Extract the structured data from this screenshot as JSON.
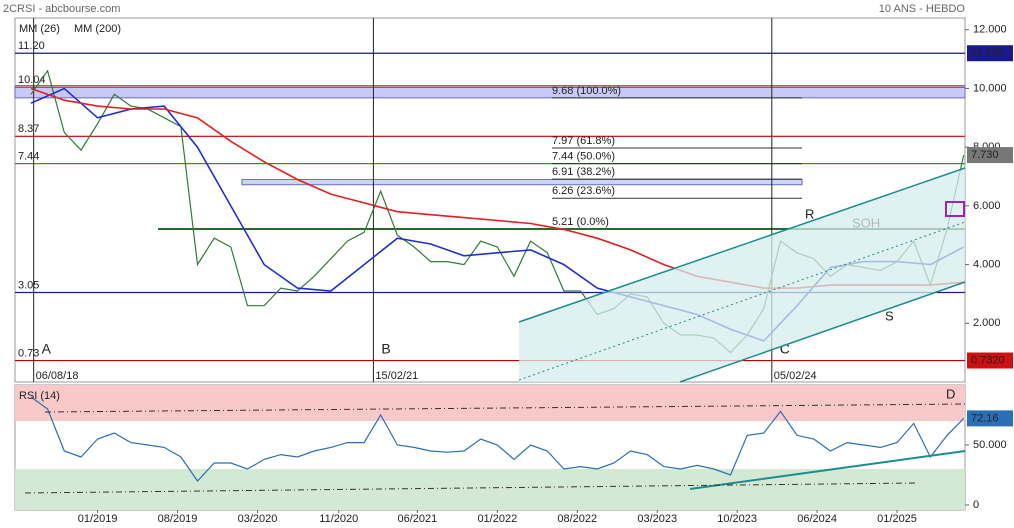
{
  "header": {
    "left": "2CRSI - abcbourse.com",
    "right": "10 ANS - HEBDO"
  },
  "chart_data": [
    {
      "type": "line",
      "xlim": [
        2018.38,
        2025.51
      ],
      "ylim": [
        0,
        12.4
      ],
      "yticks": [
        {
          "value": 12,
          "label": "12.000"
        },
        {
          "value": 10,
          "label": "10.000"
        },
        {
          "value": 8,
          "label": "8.000"
        },
        {
          "value": 6,
          "label": "6.000"
        },
        {
          "value": 4,
          "label": "4.000"
        },
        {
          "value": 2,
          "label": "2.000"
        }
      ],
      "series": [
        {
          "color": "#2f7d32",
          "x": [
            2018.5,
            2018.625,
            2018.75,
            2018.875,
            2019.0,
            2019.125,
            2019.25,
            2019.375,
            2019.5,
            2019.625,
            2019.75,
            2019.875,
            2020.0,
            2020.125,
            2020.25,
            2020.375,
            2020.5,
            2020.625,
            2020.75,
            2020.875,
            2021.0,
            2021.125,
            2021.25,
            2021.375,
            2021.5,
            2021.625,
            2021.75,
            2021.875,
            2022.0,
            2022.125,
            2022.25,
            2022.375,
            2022.5,
            2022.625,
            2022.75,
            2022.875,
            2023.0,
            2023.125,
            2023.25,
            2023.375,
            2023.5,
            2023.625,
            2023.75,
            2023.875,
            2024.0,
            2024.125,
            2024.25,
            2024.375,
            2024.5,
            2024.625,
            2024.75,
            2024.875,
            2025.0,
            2025.125,
            2025.25,
            2025.375,
            2025.5
          ],
          "values": [
            9.8,
            10.6,
            8.5,
            7.9,
            8.8,
            9.8,
            9.4,
            9.3,
            9.0,
            8.7,
            4.0,
            4.9,
            4.6,
            2.6,
            2.6,
            3.2,
            3.1,
            3.6,
            4.2,
            4.8,
            5.1,
            6.5,
            5.0,
            4.6,
            4.1,
            4.1,
            4.0,
            4.8,
            4.6,
            3.6,
            4.8,
            4.4,
            3.1,
            3.1,
            2.3,
            2.5,
            3.0,
            2.9,
            2.0,
            1.6,
            1.6,
            1.5,
            1.0,
            1.6,
            2.5,
            4.8,
            4.4,
            4.2,
            3.6,
            4.0,
            3.9,
            3.8,
            4.1,
            4.8,
            3.3,
            5.2,
            7.73
          ]
        },
        {
          "name": "MM (26)",
          "color": "#1f2fd0",
          "x": [
            2018.5,
            2018.75,
            2019.0,
            2019.25,
            2019.5,
            2019.75,
            2020.0,
            2020.25,
            2020.5,
            2020.75,
            2021.0,
            2021.25,
            2021.5,
            2021.75,
            2022.0,
            2022.25,
            2022.5,
            2022.75,
            2023.0,
            2023.25,
            2023.5,
            2023.75,
            2024.0,
            2024.25,
            2024.5,
            2024.75,
            2025.0,
            2025.25,
            2025.5
          ],
          "values": [
            9.5,
            10.0,
            9.0,
            9.3,
            9.4,
            8.0,
            6.0,
            4.0,
            3.2,
            3.1,
            4.0,
            4.9,
            4.7,
            4.3,
            4.4,
            4.5,
            4.0,
            3.2,
            2.9,
            2.6,
            2.3,
            1.8,
            1.4,
            2.6,
            3.9,
            4.1,
            4.1,
            4.0,
            4.6
          ]
        },
        {
          "name": "MM (200)",
          "color": "#e02020",
          "x": [
            2018.5,
            2018.75,
            2019.0,
            2019.25,
            2019.5,
            2019.75,
            2020.0,
            2020.25,
            2020.5,
            2020.75,
            2021.0,
            2021.25,
            2021.5,
            2021.75,
            2022.0,
            2022.25,
            2022.5,
            2022.75,
            2023.0,
            2023.25,
            2023.5,
            2023.75,
            2024.0,
            2024.25,
            2024.5,
            2024.75,
            2025.0,
            2025.25,
            2025.5
          ],
          "values": [
            10.0,
            9.6,
            9.4,
            9.3,
            9.3,
            9.0,
            8.2,
            7.5,
            6.9,
            6.4,
            6.1,
            5.8,
            5.7,
            5.6,
            5.5,
            5.4,
            5.2,
            4.9,
            4.5,
            4.0,
            3.6,
            3.4,
            3.2,
            3.2,
            3.3,
            3.3,
            3.3,
            3.3,
            3.4
          ]
        }
      ],
      "levels": [
        {
          "value": 11.2,
          "label": "11.20",
          "color": "#1a1a8c"
        },
        {
          "value": 10.04,
          "label": "10.04",
          "color": "#d03030"
        },
        {
          "value": 8.37,
          "label": "8.37",
          "color": "#c00000"
        },
        {
          "value": 7.44,
          "label": "7.44",
          "color": "#2a9a2a"
        },
        {
          "value": 3.05,
          "label": "3.05",
          "color": "#1a1a8c"
        },
        {
          "value": 0.73,
          "label": "0.73",
          "color": "#c00000"
        }
      ],
      "fib_levels": [
        {
          "value": 9.68,
          "label": "9.68 (100.0%)"
        },
        {
          "value": 7.97,
          "label": "7.97 (61.8%)"
        },
        {
          "value": 7.44,
          "label": "7.44 (50.0%)"
        },
        {
          "value": 6.91,
          "label": "6.91 (38.2%)"
        },
        {
          "value": 6.26,
          "label": "6.26 (23.6%)"
        },
        {
          "value": 5.21,
          "label": "5.21 (0.0%)"
        }
      ],
      "zones": [
        {
          "from": 9.68,
          "to": 10.1,
          "color": "#c9c9f7"
        },
        {
          "from": 6.72,
          "to": 6.9,
          "color": "#c9d6f7"
        }
      ],
      "markers": [
        {
          "x": 2018.52,
          "label": "06/08/18",
          "letter": "A"
        },
        {
          "x": 2021.07,
          "label": "15/02/21",
          "letter": "B"
        },
        {
          "x": 2024.06,
          "label": "05/02/24",
          "letter": "C"
        }
      ],
      "annotations": [
        "R",
        "S",
        "SOH"
      ],
      "price_tags": [
        {
          "value": 11.2,
          "label": "11.200",
          "color": "#1a1a8c"
        },
        {
          "value": 7.73,
          "label": "7.730",
          "color": "#777777"
        },
        {
          "value": 0.732,
          "label": "0.7320",
          "color": "#d01010"
        }
      ]
    },
    {
      "type": "line",
      "xlim": [
        2018.38,
        2025.51
      ],
      "ylim": [
        -4.2,
        100
      ],
      "yticks": [
        {
          "value": 50,
          "label": "50.000"
        },
        0
      ],
      "xticks": [
        {
          "value": 2019.0,
          "label": "01/2019"
        },
        {
          "value": 2019.6,
          "label": "08/2019"
        },
        {
          "value": 2020.2,
          "label": "03/2020"
        },
        {
          "value": 2020.81,
          "label": "11/2020"
        },
        {
          "value": 2021.4,
          "label": "06/2021"
        },
        {
          "value": 2022.0,
          "label": "01/2022"
        },
        {
          "value": 2022.6,
          "label": "08/2022"
        },
        {
          "value": 2023.2,
          "label": "03/2023"
        },
        {
          "value": 2023.8,
          "label": "10/2023"
        },
        {
          "value": 2024.4,
          "label": "06/2024"
        },
        {
          "value": 2025.0,
          "label": "01/2025"
        }
      ],
      "zones": [
        {
          "from": 70,
          "to": 100,
          "color": "#f9c9c9"
        },
        {
          "from": -4.2,
          "to": 30,
          "color": "#d4e9d4"
        }
      ],
      "series": [
        {
          "name": "RSI (14)",
          "color": "#2a6fb5",
          "x": [
            2018.5,
            2018.625,
            2018.75,
            2018.875,
            2019.0,
            2019.125,
            2019.25,
            2019.375,
            2019.5,
            2019.625,
            2019.75,
            2019.875,
            2020.0,
            2020.125,
            2020.25,
            2020.375,
            2020.5,
            2020.625,
            2020.75,
            2020.875,
            2021.0,
            2021.125,
            2021.25,
            2021.375,
            2021.5,
            2021.625,
            2021.75,
            2021.875,
            2022.0,
            2022.125,
            2022.25,
            2022.375,
            2022.5,
            2022.625,
            2022.75,
            2022.875,
            2023.0,
            2023.125,
            2023.25,
            2023.375,
            2023.5,
            2023.625,
            2023.75,
            2023.875,
            2024.0,
            2024.125,
            2024.25,
            2024.375,
            2024.5,
            2024.625,
            2024.75,
            2024.875,
            2025.0,
            2025.125,
            2025.25,
            2025.375,
            2025.5
          ],
          "values": [
            90,
            80,
            45,
            40,
            55,
            60,
            52,
            50,
            48,
            40,
            20,
            35,
            35,
            30,
            38,
            42,
            40,
            45,
            48,
            52,
            52,
            75,
            50,
            48,
            45,
            44,
            45,
            55,
            50,
            38,
            50,
            45,
            30,
            32,
            30,
            35,
            45,
            42,
            32,
            30,
            33,
            30,
            25,
            58,
            60,
            78,
            58,
            55,
            45,
            52,
            50,
            48,
            52,
            68,
            40,
            58,
            72.16
          ]
        }
      ],
      "annotations": [
        "D"
      ],
      "price_tags": [
        {
          "value": 72.16,
          "label": "72.16",
          "color": "#2a6fb5"
        }
      ]
    }
  ]
}
